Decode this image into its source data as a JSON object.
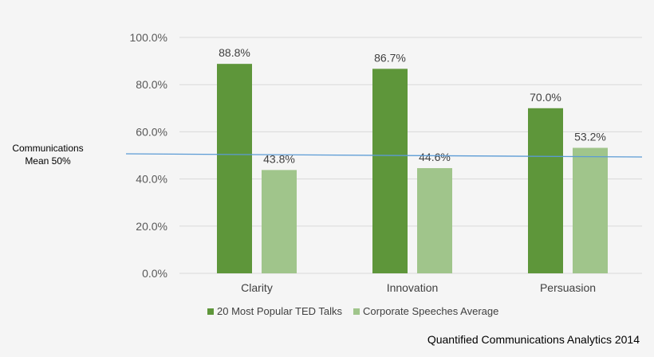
{
  "chart_data": {
    "type": "bar",
    "categories": [
      "Clarity",
      "Innovation",
      "Persuasion"
    ],
    "series": [
      {
        "name": "20 Most Popular TED Talks",
        "values": [
          88.8,
          86.7,
          70.0
        ],
        "labels": [
          "88.8%",
          "86.7%",
          "70.0%"
        ],
        "color": "#5e963a"
      },
      {
        "name": "Corporate Speeches Average",
        "values": [
          43.8,
          44.6,
          53.2
        ],
        "labels": [
          "43.8%",
          "44.6%",
          "53.2%"
        ],
        "color": "#a0c58b"
      }
    ],
    "ylim": [
      0,
      100
    ],
    "yticks": [
      0,
      20,
      40,
      60,
      80,
      100
    ],
    "ytick_labels": [
      "0.0%",
      "20.0%",
      "40.0%",
      "60.0%",
      "80.0%",
      "100.0%"
    ],
    "grid": true,
    "legend": "bottom",
    "reference_line": {
      "value": 50,
      "label_line1": "Communications",
      "label_line2": "Mean 50%",
      "color": "#5b9bd5"
    },
    "source": "Quantified Communications Analytics 2014"
  }
}
